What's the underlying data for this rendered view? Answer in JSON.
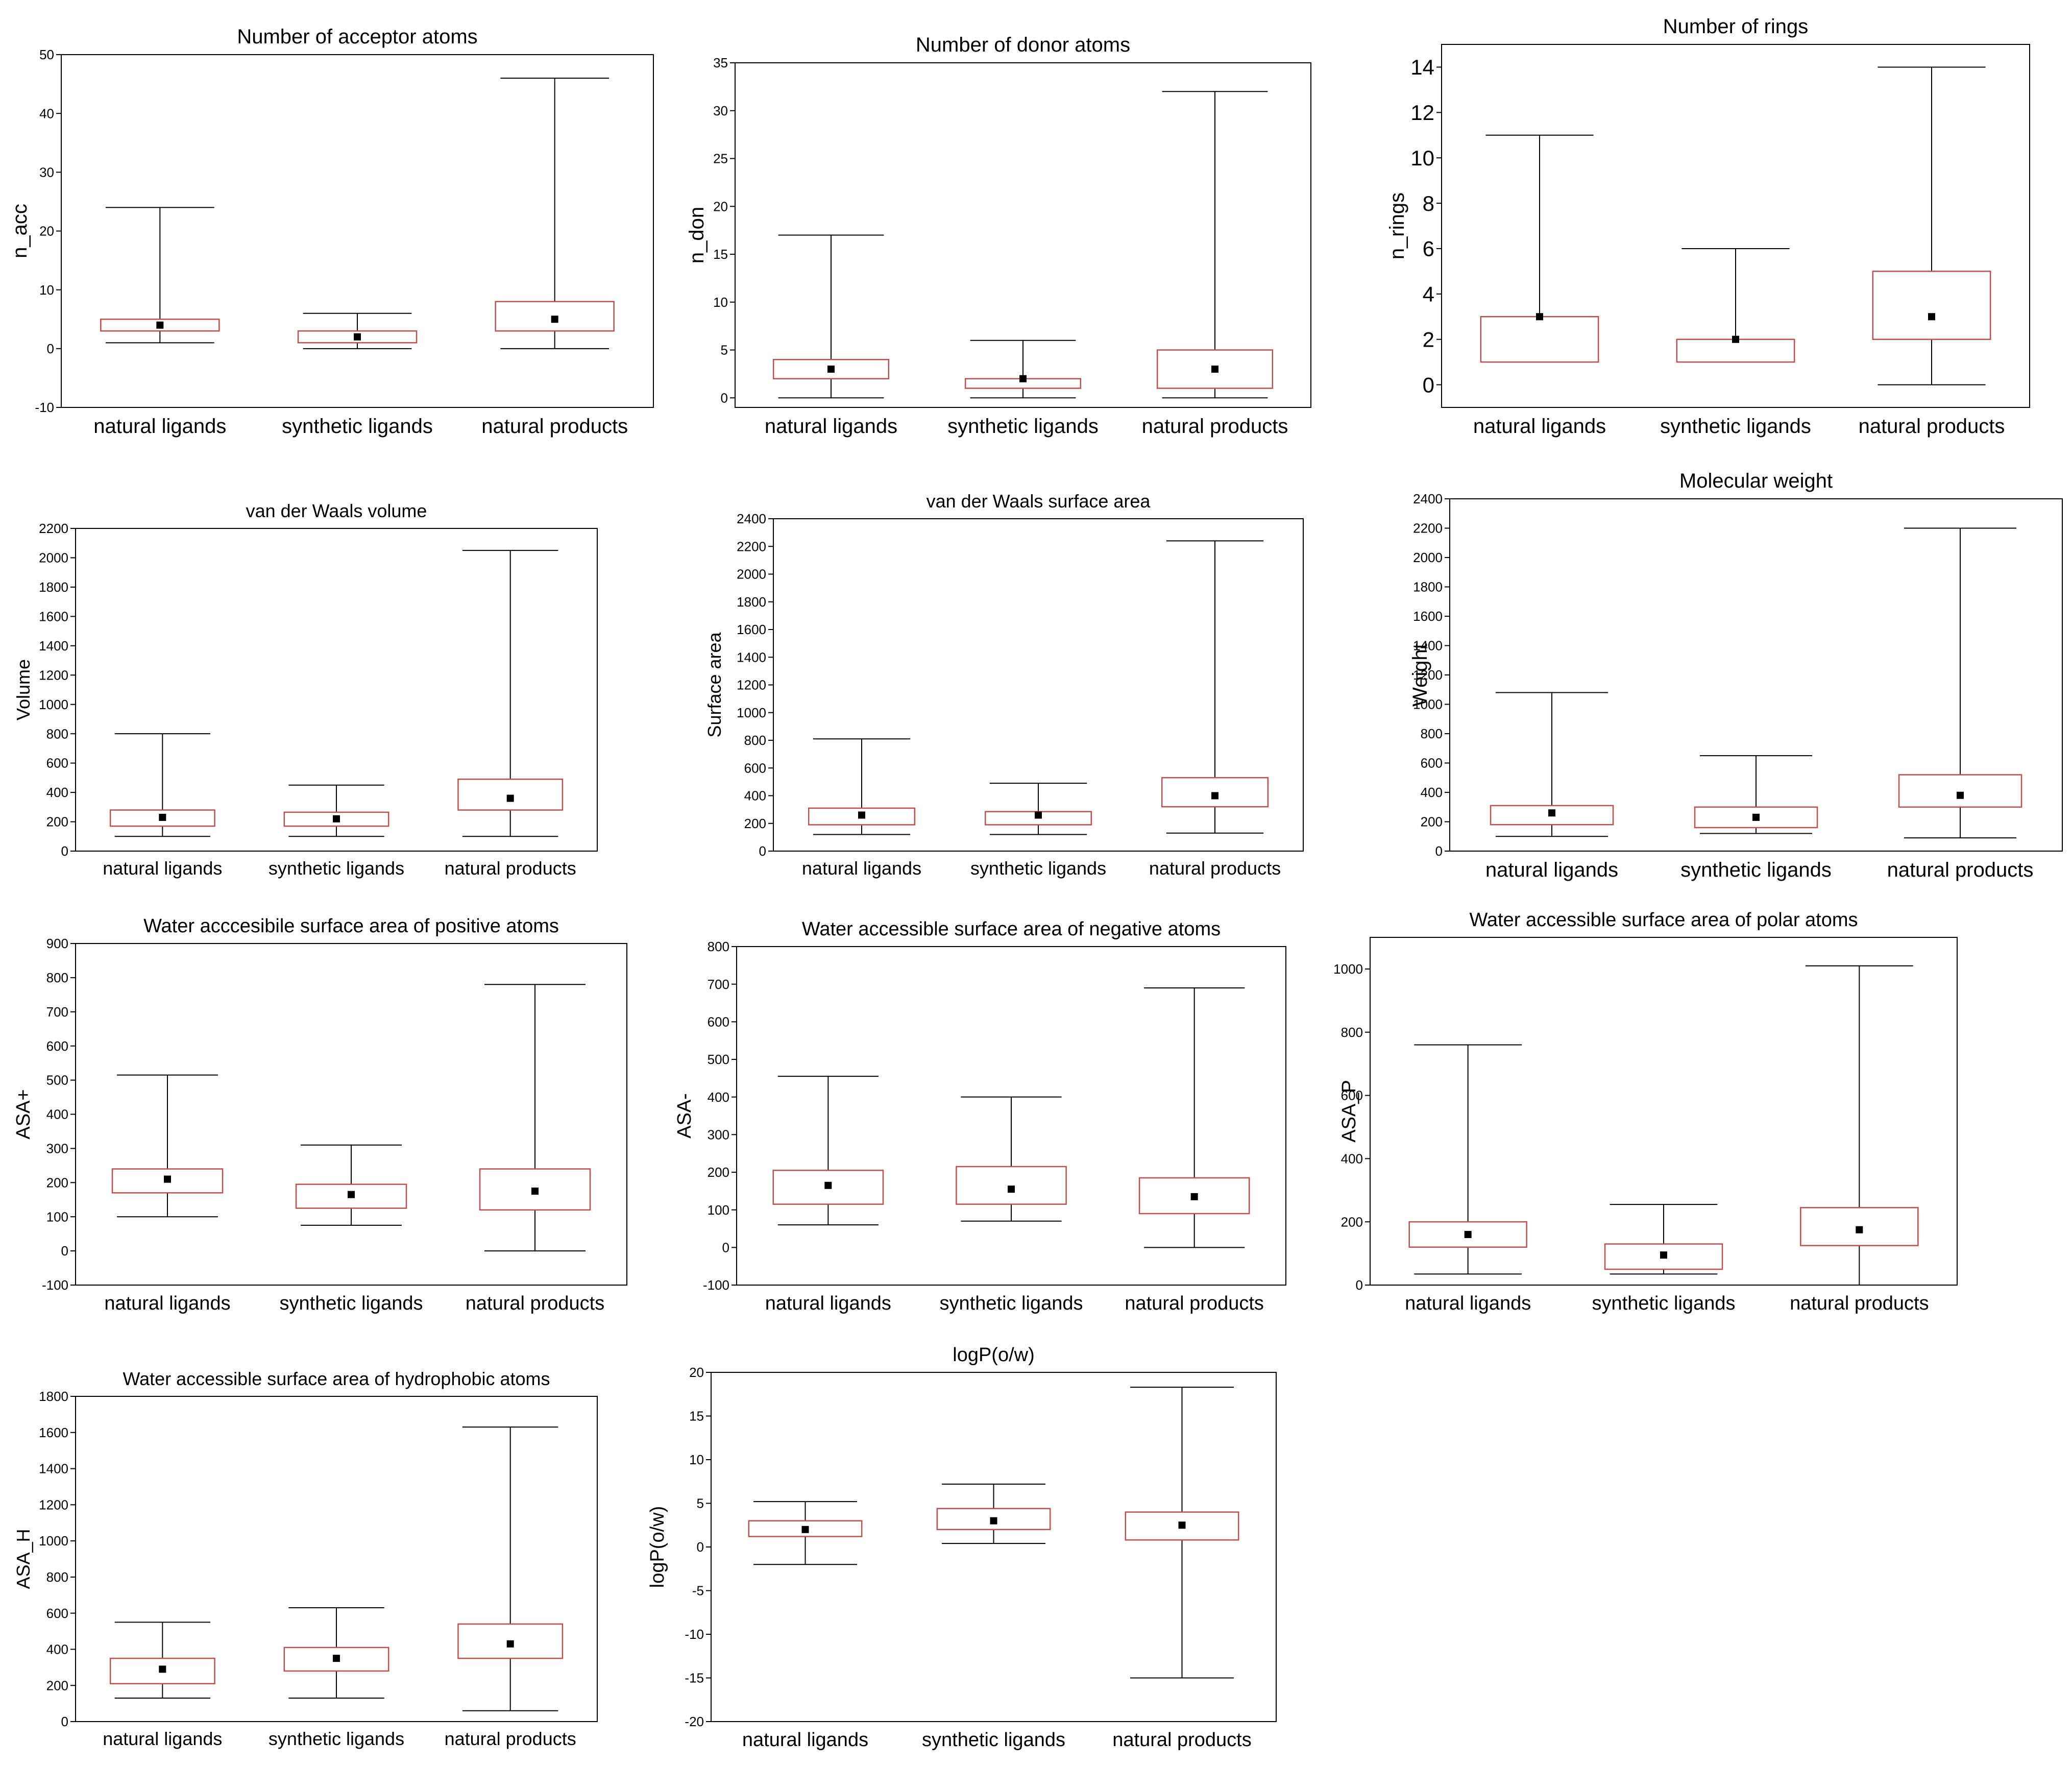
{
  "chart_data": [
    {
      "type": "box",
      "title": "Number of acceptor atoms",
      "ylabel": "n_acc",
      "categories": [
        "natural ligands",
        "synthetic ligands",
        "natural products"
      ],
      "ylim": [
        -10,
        50
      ],
      "yticks": [
        -10,
        0,
        10,
        20,
        30,
        40,
        50
      ],
      "boxes": [
        {
          "min": 1,
          "q1": 3,
          "median": 4,
          "q3": 5,
          "max": 24
        },
        {
          "min": 0,
          "q1": 1,
          "median": 2,
          "q3": 3,
          "max": 6
        },
        {
          "min": 0,
          "q1": 3,
          "median": 5,
          "q3": 8,
          "max": 46
        }
      ]
    },
    {
      "type": "box",
      "title": "Number of donor atoms",
      "ylabel": "n_don",
      "categories": [
        "natural ligands",
        "synthetic ligands",
        "natural products"
      ],
      "ylim": [
        -1,
        35
      ],
      "yticks": [
        0,
        5,
        10,
        15,
        20,
        25,
        30,
        35
      ],
      "boxes": [
        {
          "min": 0,
          "q1": 2,
          "median": 3,
          "q3": 4,
          "max": 17
        },
        {
          "min": 0,
          "q1": 1,
          "median": 2,
          "q3": 2,
          "max": 6
        },
        {
          "min": 0,
          "q1": 1,
          "median": 3,
          "q3": 5,
          "max": 32
        }
      ]
    },
    {
      "type": "box",
      "title": "Number of rings",
      "ylabel": "n_rings",
      "categories": [
        "natural ligands",
        "synthetic ligands",
        "natural products"
      ],
      "ylim": [
        -1,
        15
      ],
      "yticks": [
        0,
        2,
        4,
        6,
        8,
        10,
        12,
        14
      ],
      "boxes": [
        {
          "min": 1,
          "q1": 1,
          "median": 3,
          "q3": 3,
          "max": 11
        },
        {
          "min": 1,
          "q1": 1,
          "median": 2,
          "q3": 2,
          "max": 6
        },
        {
          "min": 0,
          "q1": 2,
          "median": 3,
          "q3": 5,
          "max": 14
        }
      ]
    },
    {
      "type": "box",
      "title": "van der Waals volume",
      "ylabel": "Volume",
      "categories": [
        "natural ligands",
        "synthetic ligands",
        "natural products"
      ],
      "ylim": [
        0,
        2200
      ],
      "yticks": [
        0,
        200,
        400,
        600,
        800,
        1000,
        1200,
        1400,
        1600,
        1800,
        2000,
        2200
      ],
      "boxes": [
        {
          "min": 100,
          "q1": 170,
          "median": 230,
          "q3": 280,
          "max": 800
        },
        {
          "min": 100,
          "q1": 170,
          "median": 220,
          "q3": 265,
          "max": 450
        },
        {
          "min": 100,
          "q1": 280,
          "median": 360,
          "q3": 490,
          "max": 2050
        }
      ]
    },
    {
      "type": "box",
      "title": "van der Waals surface area",
      "ylabel": "Surface area",
      "categories": [
        "natural ligands",
        "synthetic ligands",
        "natural products"
      ],
      "ylim": [
        0,
        2400
      ],
      "yticks": [
        0,
        200,
        400,
        600,
        800,
        1000,
        1200,
        1400,
        1600,
        1800,
        2000,
        2200,
        2400
      ],
      "boxes": [
        {
          "min": 120,
          "q1": 190,
          "median": 260,
          "q3": 310,
          "max": 810
        },
        {
          "min": 120,
          "q1": 190,
          "median": 260,
          "q3": 285,
          "max": 490
        },
        {
          "min": 130,
          "q1": 320,
          "median": 400,
          "q3": 530,
          "max": 2240
        }
      ]
    },
    {
      "type": "box",
      "title": "Molecular weight",
      "ylabel": "Weight",
      "categories": [
        "natural ligands",
        "synthetic ligands",
        "natural products"
      ],
      "ylim": [
        0,
        2400
      ],
      "yticks": [
        0,
        200,
        400,
        600,
        800,
        1000,
        1200,
        1400,
        1600,
        1800,
        2000,
        2200,
        2400
      ],
      "boxes": [
        {
          "min": 100,
          "q1": 180,
          "median": 260,
          "q3": 310,
          "max": 1080
        },
        {
          "min": 120,
          "q1": 160,
          "median": 230,
          "q3": 300,
          "max": 650
        },
        {
          "min": 90,
          "q1": 300,
          "median": 380,
          "q3": 520,
          "max": 2200
        }
      ]
    },
    {
      "type": "box",
      "title": "Water acccesibile surface area of positive atoms",
      "ylabel": "ASA+",
      "categories": [
        "natural ligands",
        "synthetic ligands",
        "natural products"
      ],
      "ylim": [
        -100,
        900
      ],
      "yticks": [
        -100,
        0,
        100,
        200,
        300,
        400,
        500,
        600,
        700,
        800,
        900
      ],
      "boxes": [
        {
          "min": 100,
          "q1": 170,
          "median": 210,
          "q3": 240,
          "max": 515
        },
        {
          "min": 75,
          "q1": 125,
          "median": 165,
          "q3": 195,
          "max": 310
        },
        {
          "min": 0,
          "q1": 120,
          "median": 175,
          "q3": 240,
          "max": 780
        }
      ]
    },
    {
      "type": "box",
      "title": "Water accessible surface area of negative atoms",
      "ylabel": "ASA-",
      "categories": [
        "natural ligands",
        "synthetic ligands",
        "natural products"
      ],
      "ylim": [
        -100,
        800
      ],
      "yticks": [
        -100,
        0,
        100,
        200,
        300,
        400,
        500,
        600,
        700,
        800
      ],
      "boxes": [
        {
          "min": 60,
          "q1": 115,
          "median": 165,
          "q3": 205,
          "max": 455
        },
        {
          "min": 70,
          "q1": 115,
          "median": 155,
          "q3": 215,
          "max": 400
        },
        {
          "min": 0,
          "q1": 90,
          "median": 135,
          "q3": 185,
          "max": 690
        }
      ]
    },
    {
      "type": "box",
      "title": "Water accessible surface area of polar atoms",
      "ylabel": "ASA_P",
      "categories": [
        "natural ligands",
        "synthetic ligands",
        "natural products"
      ],
      "ylim": [
        0,
        1100
      ],
      "yticks": [
        0,
        200,
        400,
        600,
        800,
        1000
      ],
      "boxes": [
        {
          "min": 35,
          "q1": 120,
          "median": 160,
          "q3": 200,
          "max": 760
        },
        {
          "min": 35,
          "q1": 50,
          "median": 95,
          "q3": 130,
          "max": 255
        },
        {
          "min": 0,
          "q1": 125,
          "median": 175,
          "q3": 245,
          "max": 1010
        }
      ]
    },
    {
      "type": "box",
      "title": "Water accessible surface area of hydrophobic atoms",
      "ylabel": "ASA_H",
      "categories": [
        "natural ligands",
        "synthetic ligands",
        "natural products"
      ],
      "ylim": [
        0,
        1800
      ],
      "yticks": [
        0,
        200,
        400,
        600,
        800,
        1000,
        1200,
        1400,
        1600,
        1800
      ],
      "boxes": [
        {
          "min": 130,
          "q1": 210,
          "median": 290,
          "q3": 350,
          "max": 550
        },
        {
          "min": 130,
          "q1": 280,
          "median": 350,
          "q3": 410,
          "max": 630
        },
        {
          "min": 60,
          "q1": 350,
          "median": 430,
          "q3": 540,
          "max": 1630
        }
      ]
    },
    {
      "type": "box",
      "title": "logP(o/w)",
      "ylabel": "logP(o/w)",
      "categories": [
        "natural ligands",
        "synthetic ligands",
        "natural products"
      ],
      "ylim": [
        -20,
        20
      ],
      "yticks": [
        -20,
        -15,
        -10,
        -5,
        0,
        5,
        10,
        15,
        20
      ],
      "boxes": [
        {
          "min": -2,
          "q1": 1.2,
          "median": 2,
          "q3": 3,
          "max": 5.2
        },
        {
          "min": 0.4,
          "q1": 2,
          "median": 3,
          "q3": 4.4,
          "max": 7.2
        },
        {
          "min": -15,
          "q1": 0.8,
          "median": 2.5,
          "q3": 4,
          "max": 18.3
        }
      ]
    }
  ],
  "colors": {
    "box": "#c0504d",
    "whisker": "#000000",
    "axis": "#000000",
    "background": "#ffffff"
  }
}
